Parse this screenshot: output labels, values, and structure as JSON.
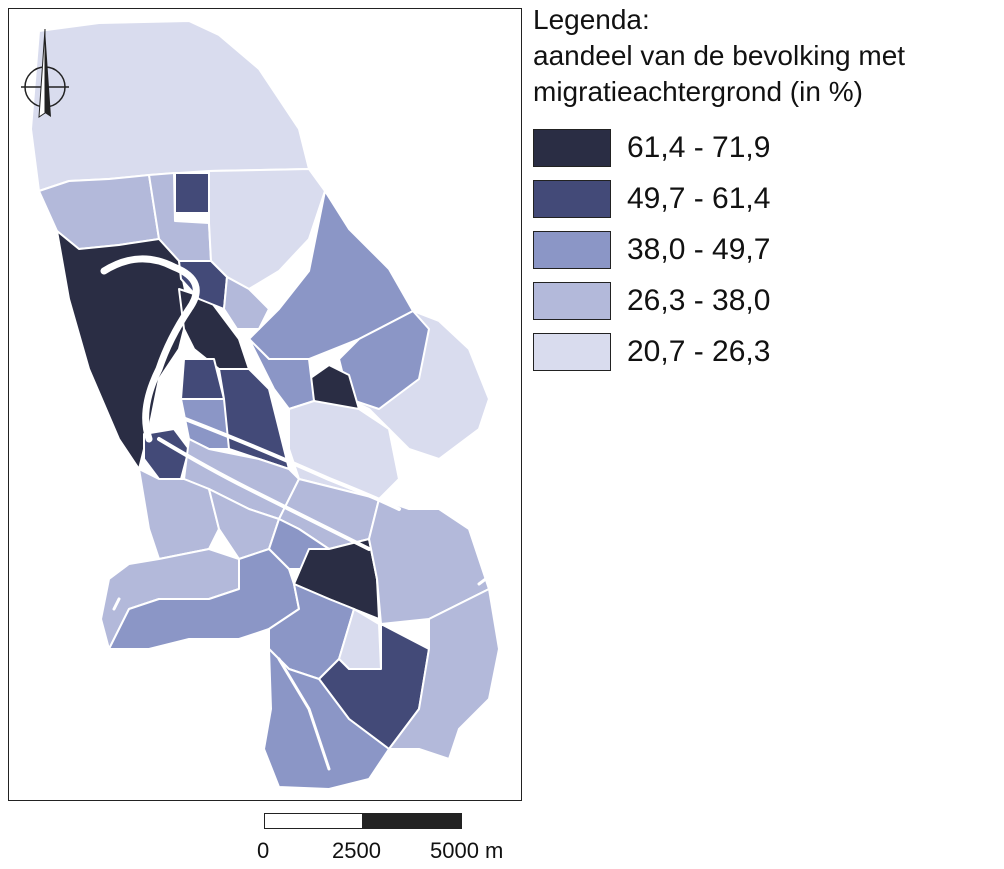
{
  "legend": {
    "title": "Legenda:",
    "subtitle_line1": "aandeel van de bevolking met",
    "subtitle_line2": "migratieachtergrond (in %)",
    "classes": [
      {
        "label": "61,4 - 71,9",
        "color": "#2a2d44"
      },
      {
        "label": "49,7 - 61,4",
        "color": "#434a78"
      },
      {
        "label": "38,0 - 49,7",
        "color": "#8b96c6"
      },
      {
        "label": "26,3 - 38,0",
        "color": "#b3b9da"
      },
      {
        "label": "20,7 - 26,3",
        "color": "#d9dcee"
      }
    ]
  },
  "scale": {
    "labels": [
      "0",
      "2500",
      "5000 m"
    ],
    "segment_colors": [
      "#ffffff",
      "#222222"
    ]
  },
  "compass": {
    "icon": "north-arrow-icon"
  },
  "map": {
    "boundary_color": "#ffffff"
  }
}
